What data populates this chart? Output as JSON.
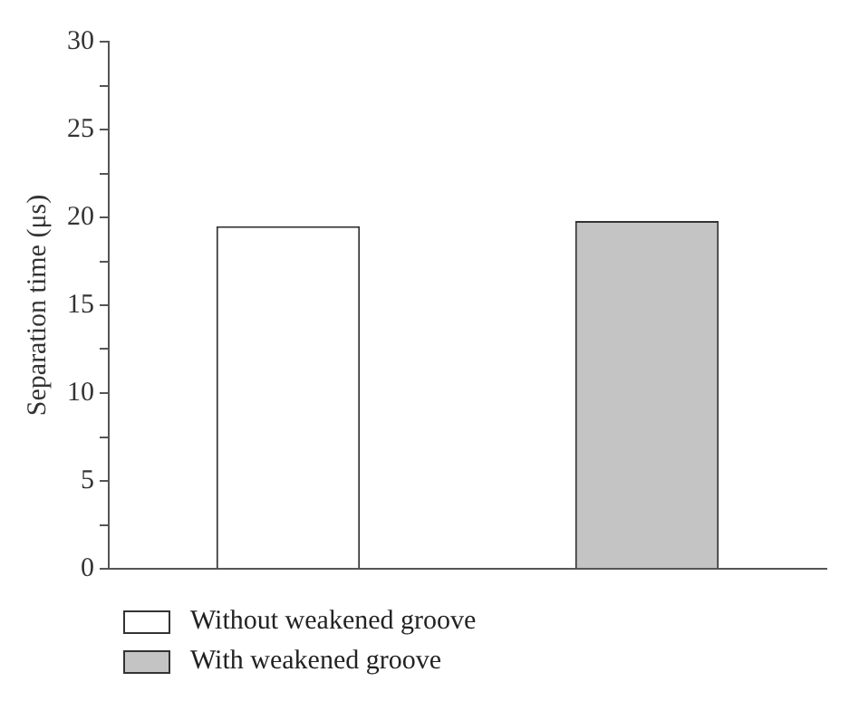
{
  "chart_data": {
    "type": "bar",
    "ylabel": "Separation time (μs)",
    "categories": [
      null,
      null
    ],
    "series": [
      {
        "name": "Without weakened groove",
        "color": "#ffffff",
        "values": [
          19.5,
          null
        ]
      },
      {
        "name": "With weakened groove",
        "color": "#c4c4c4",
        "values": [
          null,
          19.8
        ]
      }
    ],
    "ylim": [
      0,
      30
    ],
    "yticks": [
      0,
      {
        "value": 2.5,
        "label": null
      },
      5,
      {
        "value": 7.5,
        "label": null
      },
      10,
      {
        "value": 12.5,
        "label": null
      },
      15,
      {
        "value": 17.5,
        "label": null
      },
      20,
      {
        "value": 22.5,
        "label": null
      },
      25,
      {
        "value": 27.5,
        "label": null
      },
      30
    ],
    "grid": false,
    "legend": "bottom left"
  }
}
